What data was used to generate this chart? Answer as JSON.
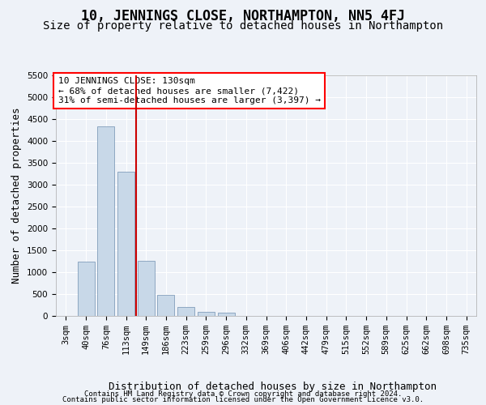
{
  "title": "10, JENNINGS CLOSE, NORTHAMPTON, NN5 4FJ",
  "subtitle": "Size of property relative to detached houses in Northampton",
  "xlabel": "Distribution of detached houses by size in Northampton",
  "ylabel": "Number of detached properties",
  "footer_line1": "Contains HM Land Registry data © Crown copyright and database right 2024.",
  "footer_line2": "Contains public sector information licensed under the Open Government Licence v3.0.",
  "annotation_title": "10 JENNINGS CLOSE: 130sqm",
  "annotation_line2": "← 68% of detached houses are smaller (7,422)",
  "annotation_line3": "31% of semi-detached houses are larger (3,397) →",
  "bar_color": "#c8d8e8",
  "bar_edge_color": "#7090b0",
  "vline_color": "#cc0000",
  "categories": [
    "3sqm",
    "40sqm",
    "76sqm",
    "113sqm",
    "149sqm",
    "186sqm",
    "223sqm",
    "259sqm",
    "296sqm",
    "332sqm",
    "369sqm",
    "406sqm",
    "442sqm",
    "479sqm",
    "515sqm",
    "552sqm",
    "589sqm",
    "625sqm",
    "662sqm",
    "698sqm",
    "735sqm"
  ],
  "values": [
    0,
    1230,
    4330,
    3300,
    1250,
    480,
    200,
    100,
    65,
    0,
    0,
    0,
    0,
    0,
    0,
    0,
    0,
    0,
    0,
    0,
    0
  ],
  "ylim": [
    0,
    5500
  ],
  "yticks": [
    0,
    500,
    1000,
    1500,
    2000,
    2500,
    3000,
    3500,
    4000,
    4500,
    5000,
    5500
  ],
  "red_line_x": 3.5,
  "background_color": "#eef2f8",
  "grid_color": "#ffffff",
  "title_fontsize": 12,
  "subtitle_fontsize": 10,
  "ylabel_fontsize": 9,
  "xlabel_fontsize": 9,
  "tick_fontsize": 7.5,
  "annotation_fontsize": 8,
  "footer_fontsize": 6.5
}
